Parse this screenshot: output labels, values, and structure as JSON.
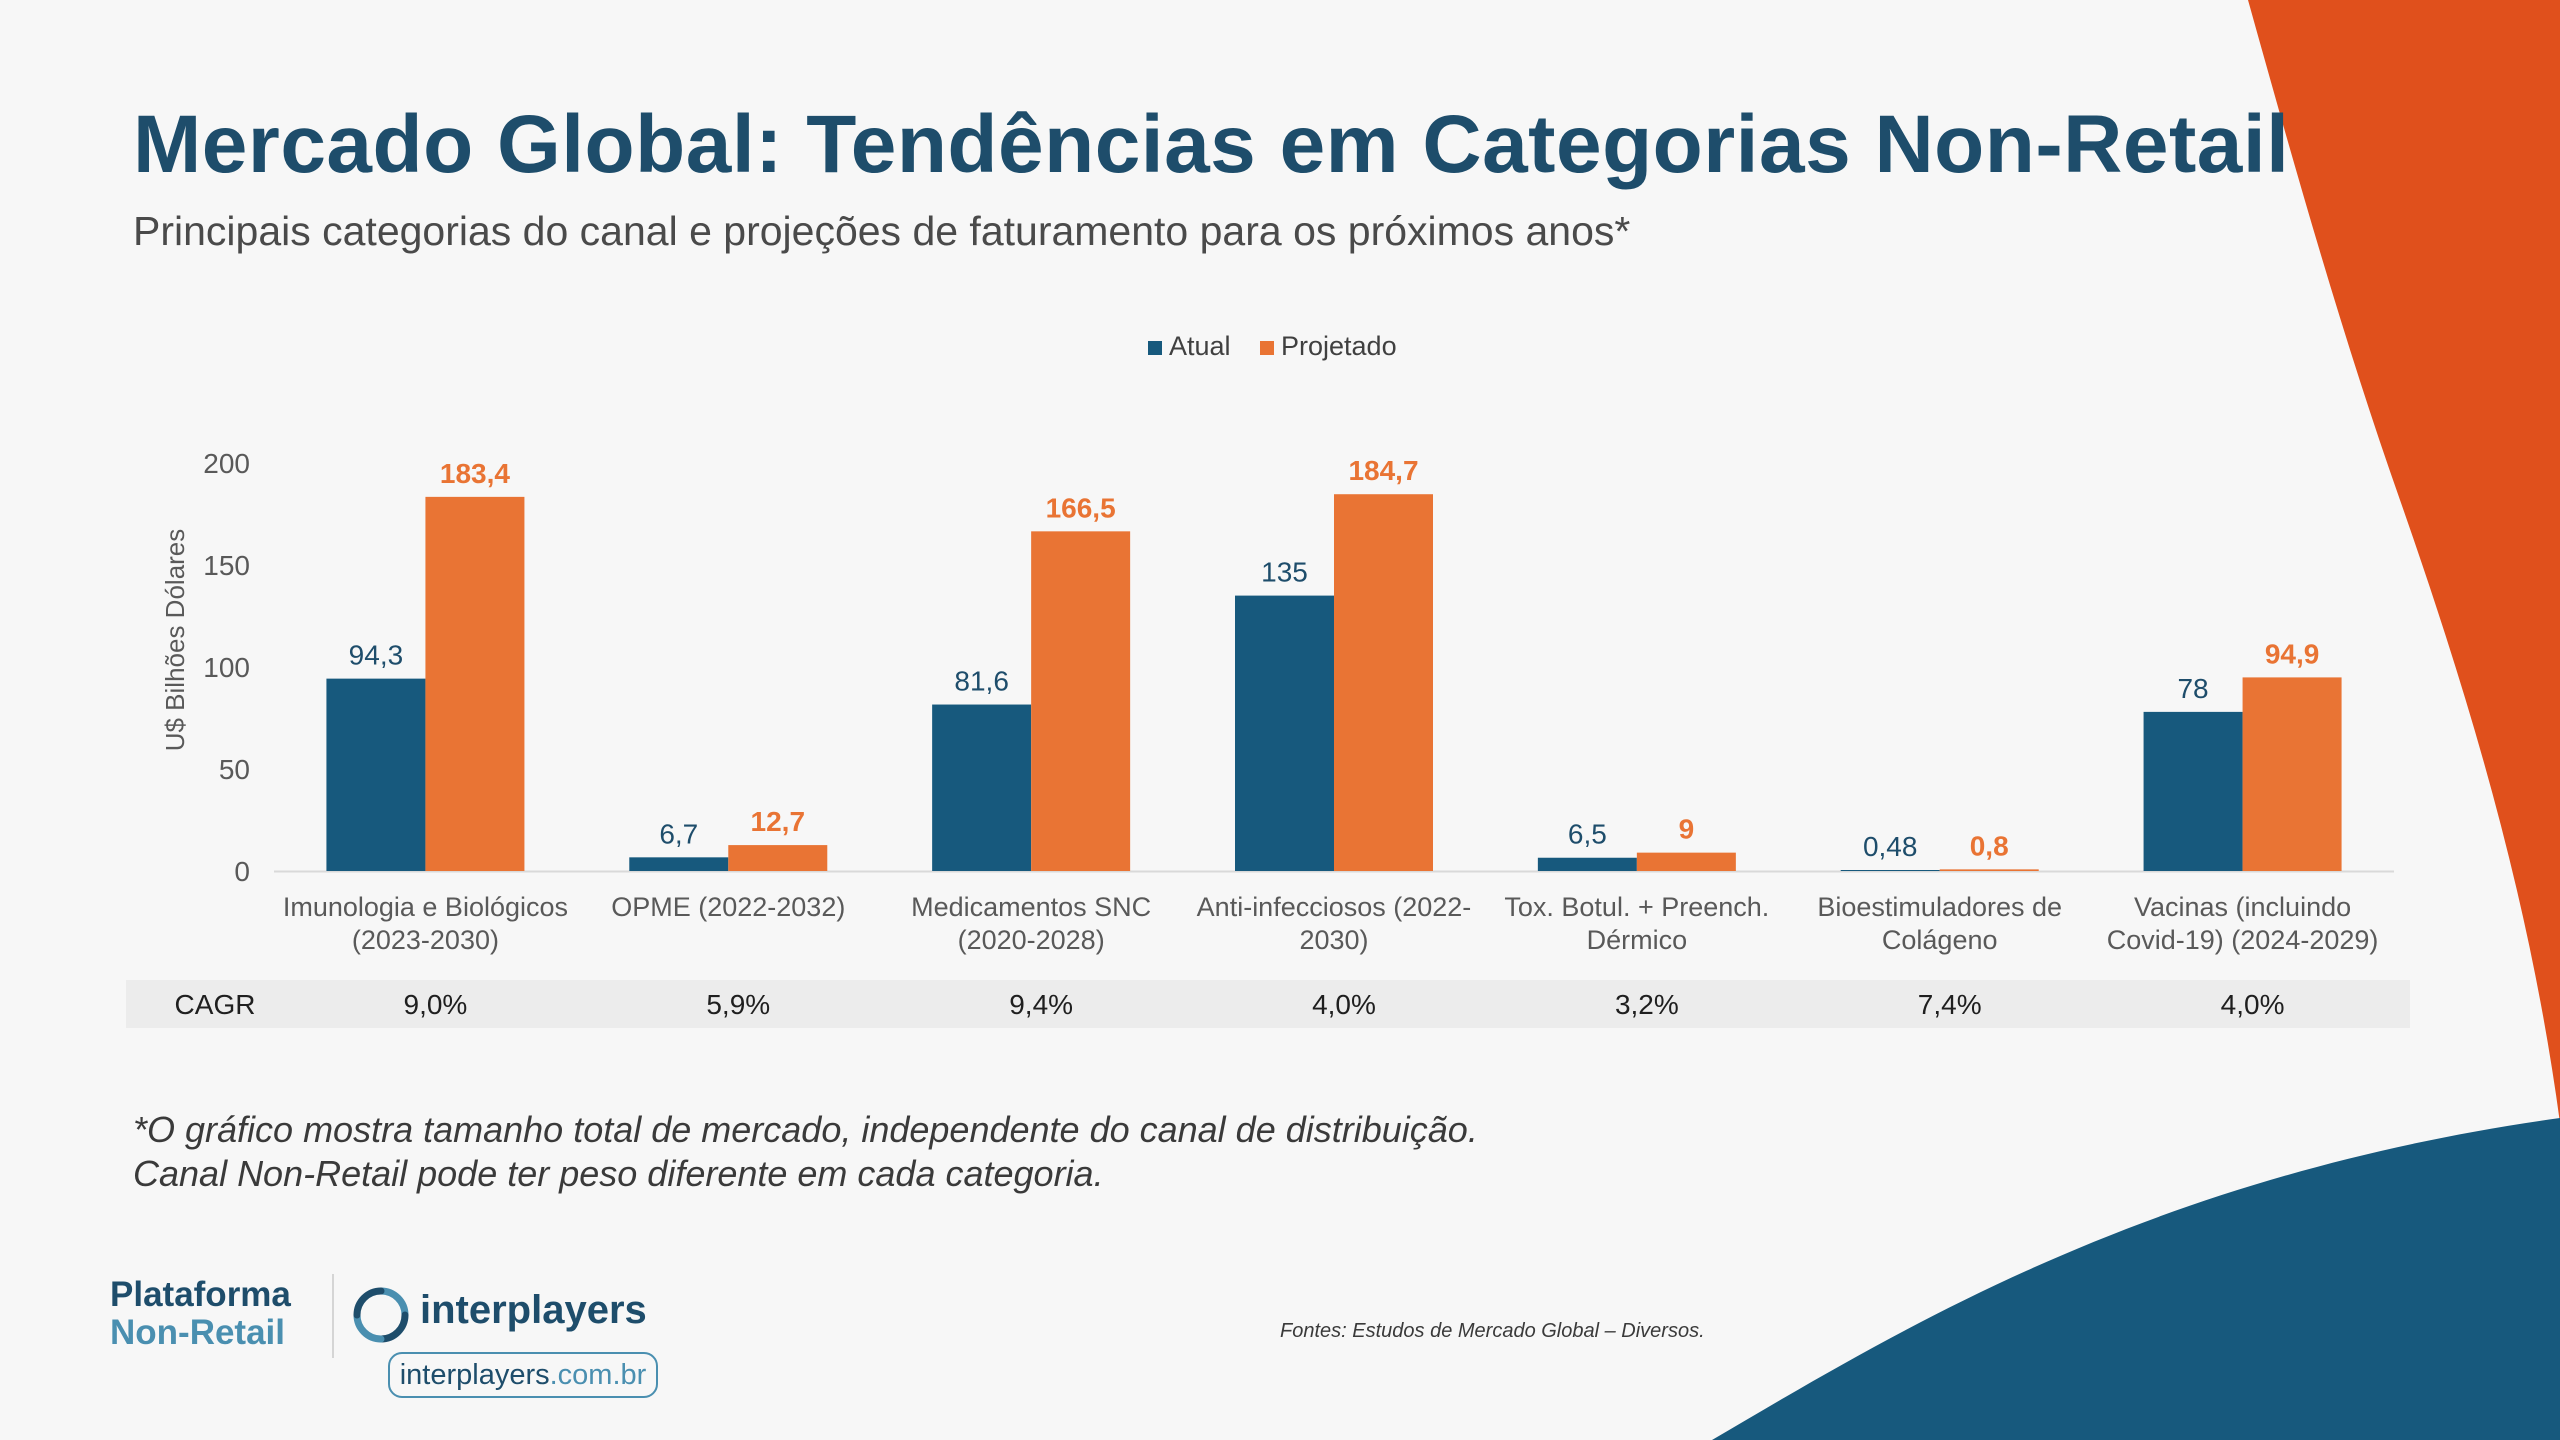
{
  "title": "Mercado Global: Tendências em Categorias Non-Retail",
  "subtitle": "Principais categorias do canal e projeções de faturamento para os próximos anos*",
  "colors": {
    "atual": "#17597d",
    "projetado": "#e97434",
    "title": "#1e4d6b",
    "accent_orange": "#e0501c",
    "accent_blue": "#17597d"
  },
  "chart_data": {
    "type": "bar",
    "title": "",
    "ylabel": "U$ Bilhões Dólares",
    "xlabel": "",
    "ylim": [
      0,
      200
    ],
    "yticks": [
      0,
      50,
      100,
      150,
      200
    ],
    "legend": "top-center",
    "categories": [
      [
        "Imunologia e Biológicos",
        "(2023-2030)"
      ],
      [
        "OPME (2022-2032)"
      ],
      [
        "Medicamentos SNC",
        "(2020-2028)"
      ],
      [
        "Anti-infecciosos (2022-",
        "2030)"
      ],
      [
        "Tox. Botul. + Preench.",
        "Dérmico"
      ],
      [
        "Bioestimuladores de",
        "Colágeno"
      ],
      [
        "Vacinas (incluindo",
        "Covid-19) (2024-2029)"
      ]
    ],
    "series": [
      {
        "name": "Atual",
        "values": [
          94.3,
          6.7,
          81.6,
          135,
          6.5,
          0.48,
          78
        ],
        "labels": [
          "94,3",
          "6,7",
          "81,6",
          "135",
          "6,5",
          "0,48",
          "78"
        ]
      },
      {
        "name": "Projetado",
        "values": [
          183.4,
          12.7,
          166.5,
          184.7,
          9,
          0.8,
          94.9
        ],
        "labels": [
          "183,4",
          "12,7",
          "166,5",
          "184,7",
          "9",
          "0,8",
          "94,9"
        ]
      }
    ],
    "cagr_label": "CAGR",
    "cagr": [
      "9,0%",
      "5,9%",
      "9,4%",
      "4,0%",
      "3,2%",
      "7,4%",
      "4,0%"
    ]
  },
  "footnote": "*O gráfico mostra tamanho total de mercado, independente do canal de distribuição. Canal Non-Retail  pode ter peso diferente em cada categoria.",
  "sources": "Fontes: Estudos de Mercado Global – Diversos.",
  "brand": {
    "platform_line1": "Plataforma",
    "platform_line2": "Non-Retail",
    "logo_text": "interplayers",
    "site_prefix": "interplayers",
    "site_suffix": ".com.br",
    "logo_icon": "interplayers-ring-icon"
  }
}
